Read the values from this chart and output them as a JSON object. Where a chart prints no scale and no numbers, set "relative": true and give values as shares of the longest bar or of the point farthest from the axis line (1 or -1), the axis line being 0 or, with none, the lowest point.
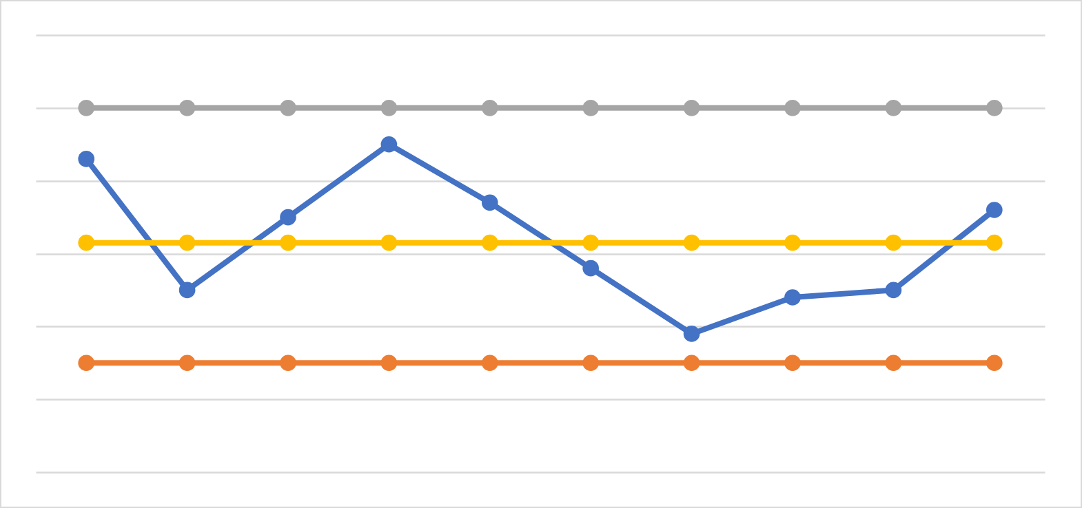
{
  "chart_data": {
    "type": "line",
    "relative": true,
    "grid": "y",
    "marker": "circle",
    "categories": [
      null,
      null,
      null,
      null,
      null,
      null,
      null,
      null,
      null,
      null
    ],
    "series": [
      {
        "color": "#4472c4",
        "values": [
          0.86,
          0.5,
          0.7,
          0.9,
          0.74,
          0.56,
          0.38,
          0.48,
          0.5,
          0.72
        ]
      },
      {
        "color": "#ed7d31",
        "values": [
          0.3,
          0.3,
          0.3,
          0.3,
          0.3,
          0.3,
          0.3,
          0.3,
          0.3,
          0.3
        ]
      },
      {
        "color": "#a5a5a5",
        "values": [
          1,
          1,
          1,
          1,
          1,
          1,
          1,
          1,
          1,
          1
        ]
      },
      {
        "color": "#ffc000",
        "values": [
          0.63,
          0.63,
          0.63,
          0.63,
          0.63,
          0.63,
          0.63,
          0.63,
          0.63,
          0.63
        ]
      }
    ]
  }
}
